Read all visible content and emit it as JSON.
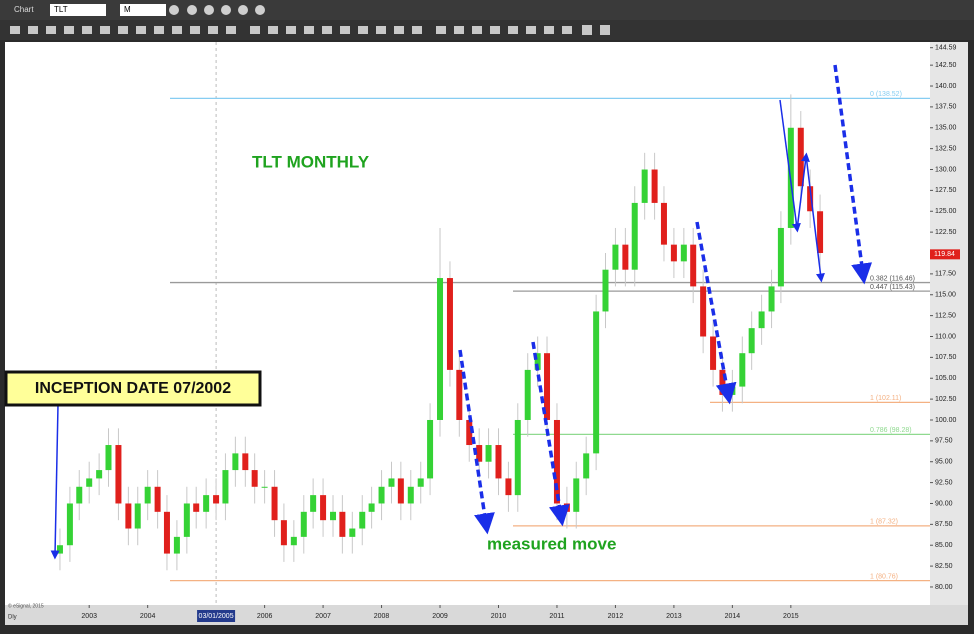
{
  "window": {
    "title": "Chart",
    "symbol": "TLT",
    "interval": "M"
  },
  "chart_data": {
    "type": "candlestick",
    "title": "TLT MONTHLY",
    "annotations": [
      "INCEPTION DATE 07/2002",
      "measured move"
    ],
    "x": [
      2002.5,
      2002.67,
      2002.83,
      2003.0,
      2003.17,
      2003.33,
      2003.5,
      2003.67,
      2003.83,
      2004.0,
      2004.17,
      2004.33,
      2004.5,
      2004.67,
      2004.83,
      2005.0,
      2005.17,
      2005.33,
      2005.5,
      2005.67,
      2005.83,
      2006.0,
      2006.17,
      2006.33,
      2006.5,
      2006.67,
      2006.83,
      2007.0,
      2007.17,
      2007.33,
      2007.5,
      2007.67,
      2007.83,
      2008.0,
      2008.17,
      2008.33,
      2008.5,
      2008.67,
      2008.83,
      2009.0,
      2009.17,
      2009.33,
      2009.5,
      2009.67,
      2009.83,
      2010.0,
      2010.17,
      2010.33,
      2010.5,
      2010.67,
      2010.83,
      2011.0,
      2011.17,
      2011.33,
      2011.5,
      2011.67,
      2011.83,
      2012.0,
      2012.17,
      2012.33,
      2012.5,
      2012.67,
      2012.83,
      2013.0,
      2013.17,
      2013.33,
      2013.5,
      2013.67,
      2013.83,
      2014.0,
      2014.17,
      2014.33,
      2014.5,
      2014.67,
      2014.83,
      2015.0,
      2015.17,
      2015.33,
      2015.5
    ],
    "open": [
      84,
      85,
      90,
      92,
      93,
      94,
      97,
      90,
      87,
      90,
      92,
      89,
      84,
      86,
      90,
      89,
      91,
      90,
      94,
      96,
      94,
      92,
      92,
      88,
      85,
      86,
      89,
      91,
      88,
      89,
      86,
      87,
      89,
      90,
      92,
      93,
      90,
      92,
      93,
      100,
      117,
      106,
      100,
      97,
      95,
      97,
      93,
      91,
      100,
      106,
      108,
      100,
      90,
      89,
      93,
      96,
      113,
      118,
      121,
      118,
      126,
      130,
      126,
      121,
      119,
      121,
      116,
      110,
      106,
      103,
      104,
      108,
      111,
      113,
      116,
      123,
      135,
      128,
      125
    ],
    "high": [
      87,
      92,
      94,
      95,
      96,
      99,
      99,
      92,
      92,
      94,
      94,
      91,
      88,
      92,
      92,
      93,
      93,
      96,
      98,
      98,
      96,
      94,
      94,
      90,
      88,
      91,
      93,
      93,
      91,
      91,
      89,
      91,
      92,
      94,
      95,
      95,
      94,
      95,
      102,
      123,
      119,
      108,
      102,
      99,
      99,
      99,
      95,
      102,
      108,
      110,
      110,
      102,
      92,
      95,
      98,
      115,
      120,
      123,
      123,
      128,
      132,
      132,
      128,
      123,
      123,
      123,
      118,
      112,
      108,
      106,
      110,
      113,
      115,
      118,
      125,
      139,
      137,
      130,
      127
    ],
    "low": [
      82,
      83,
      88,
      90,
      91,
      92,
      88,
      85,
      85,
      88,
      87,
      82,
      82,
      84,
      87,
      87,
      88,
      88,
      92,
      92,
      90,
      90,
      86,
      83,
      83,
      84,
      87,
      86,
      86,
      84,
      84,
      85,
      87,
      88,
      90,
      88,
      88,
      90,
      91,
      98,
      104,
      98,
      95,
      93,
      93,
      91,
      89,
      89,
      98,
      104,
      98,
      88,
      87,
      87,
      91,
      94,
      111,
      116,
      116,
      116,
      124,
      124,
      119,
      117,
      117,
      114,
      108,
      104,
      101,
      101,
      102,
      106,
      109,
      111,
      114,
      121,
      126,
      123,
      118
    ],
    "close": [
      85,
      90,
      92,
      93,
      94,
      97,
      90,
      87,
      90,
      92,
      89,
      84,
      86,
      90,
      89,
      91,
      90,
      94,
      96,
      94,
      92,
      92,
      88,
      85,
      86,
      89,
      91,
      88,
      89,
      86,
      87,
      89,
      90,
      92,
      93,
      90,
      92,
      93,
      100,
      117,
      106,
      100,
      97,
      95,
      97,
      93,
      91,
      100,
      106,
      108,
      100,
      90,
      89,
      93,
      96,
      113,
      118,
      121,
      118,
      126,
      130,
      126,
      121,
      119,
      121,
      116,
      110,
      106,
      103,
      104,
      108,
      111,
      113,
      116,
      123,
      135,
      128,
      125,
      120
    ],
    "up_color": "#35d235",
    "down_color": "#e0201c",
    "xlim": [
      2001.56,
      2017.38
    ],
    "ylim": [
      77.84,
      144.59
    ],
    "xticks": [
      2003,
      2004,
      {
        "value": 2005.17,
        "label": "03/01/2005"
      },
      2006,
      2007,
      2008,
      2009,
      2010,
      2011,
      2012,
      2013,
      2014,
      2015
    ],
    "yticks": [
      {
        "value": 80,
        "label": "80.00"
      },
      {
        "value": 82.5,
        "label": "82.50"
      },
      {
        "value": 85,
        "label": "85.00"
      },
      {
        "value": 87.5,
        "label": "87.50"
      },
      {
        "value": 90,
        "label": "90.00"
      },
      {
        "value": 92.5,
        "label": "92.50"
      },
      {
        "value": 95,
        "label": "95.00"
      },
      {
        "value": 97.5,
        "label": "97.50"
      },
      {
        "value": 100,
        "label": "100.00"
      },
      {
        "value": 102.5,
        "label": "102.50"
      },
      {
        "value": 105,
        "label": "105.00"
      },
      {
        "value": 107.5,
        "label": "107.50"
      },
      {
        "value": 110,
        "label": "110.00"
      },
      {
        "value": 112.5,
        "label": "112.50"
      },
      {
        "value": 115,
        "label": "115.00"
      },
      {
        "value": 117.5,
        "label": "117.50"
      },
      {
        "value": 120,
        "label": "120.00"
      },
      {
        "value": 122.5,
        "label": "122.50"
      },
      {
        "value": 125,
        "label": "125.00"
      },
      {
        "value": 127.5,
        "label": "127.50"
      },
      {
        "value": 130,
        "label": "130.00"
      },
      {
        "value": 132.5,
        "label": "132.50"
      },
      {
        "value": 135,
        "label": "135.00"
      },
      {
        "value": 137.5,
        "label": "137.50"
      },
      {
        "value": 140,
        "label": "140.00"
      },
      {
        "value": 142.5,
        "label": "142.50"
      },
      144.59
    ],
    "levels": [
      {
        "value": 138.52,
        "label": "0 (138.52)",
        "color": "#86cdf2"
      },
      {
        "value": 116.46,
        "label": "0.382 (116.46)",
        "color": "#9a9a9a"
      },
      {
        "value": 115.43,
        "label": "0.447 (115.43)",
        "color": "#9a9a9a"
      },
      {
        "value": 102.11,
        "label": "1 (102.11)",
        "color": "#f4b183"
      },
      {
        "value": 98.28,
        "label": "0.786 (98.28)",
        "color": "#8fd98f"
      },
      {
        "value": 87.32,
        "label": "1 (87.32)",
        "color": "#f4b183"
      },
      {
        "value": 80.76,
        "label": "1 (80.76)",
        "color": "#f4b183"
      }
    ],
    "last_price": {
      "value": 119.84,
      "label": "119.84"
    }
  },
  "footer": {
    "interval": "Dly",
    "copyright": "© eSignal, 2015"
  }
}
